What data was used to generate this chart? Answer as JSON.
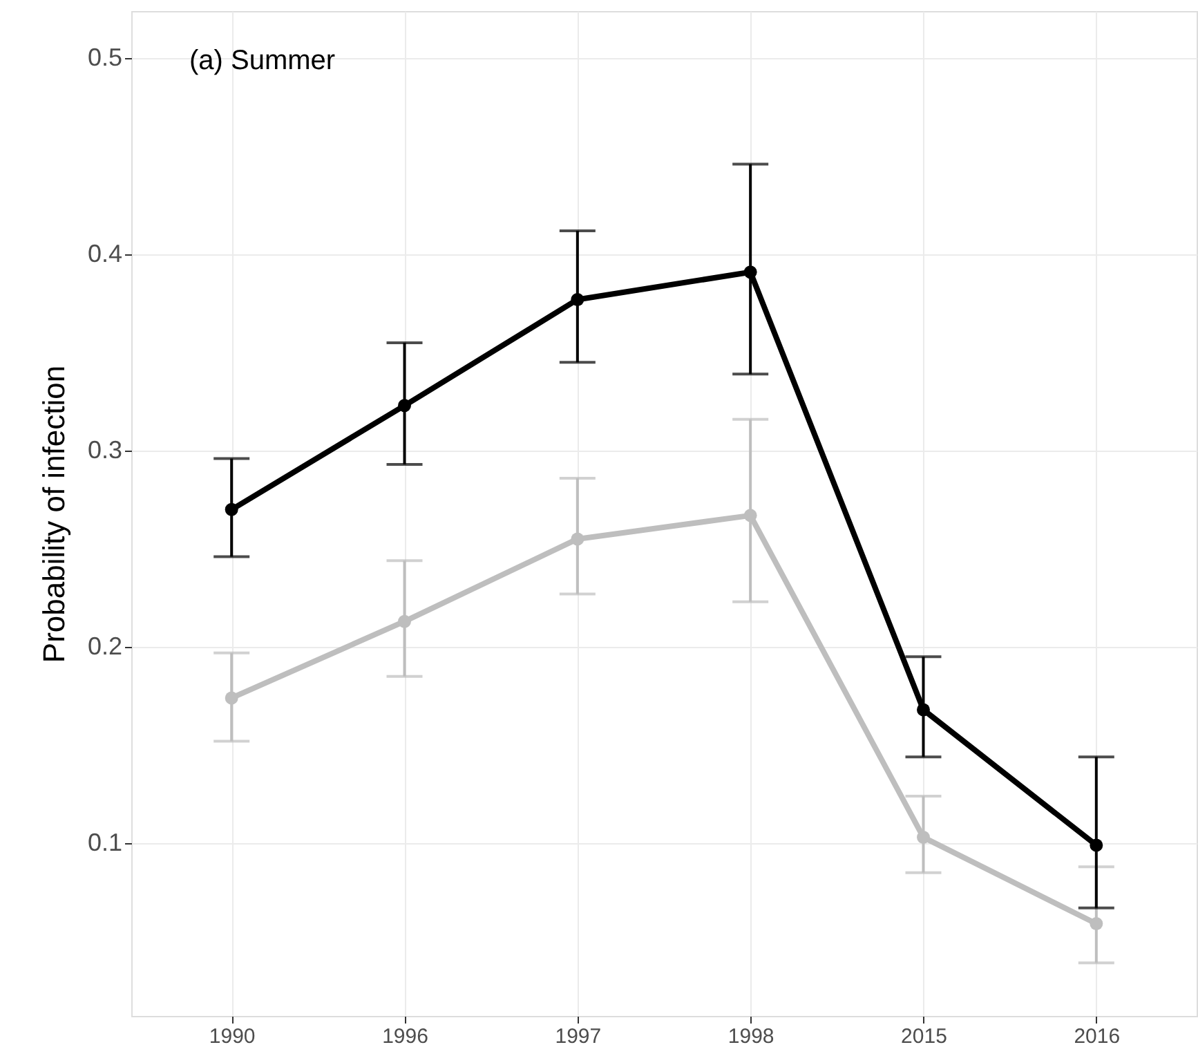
{
  "chart_data": {
    "type": "line",
    "ylabel": "Probability of infection",
    "annotations": [
      "(a) Summer"
    ],
    "categories": [
      "1990",
      "1996",
      "1997",
      "1998",
      "2015",
      "2016"
    ],
    "series": [
      {
        "color": "#bebebe",
        "values": [
          0.174,
          0.213,
          0.255,
          0.267,
          0.103,
          0.059
        ],
        "errors": [
          [
            0.152,
            0.197
          ],
          [
            0.185,
            0.244
          ],
          [
            0.227,
            0.286
          ],
          [
            0.223,
            0.316
          ],
          [
            0.085,
            0.124
          ],
          [
            0.039,
            0.088
          ]
        ]
      },
      {
        "color": "#000000",
        "values": [
          0.27,
          0.323,
          0.377,
          0.391,
          0.168,
          0.099
        ],
        "errors": [
          [
            0.246,
            0.296
          ],
          [
            0.293,
            0.355
          ],
          [
            0.345,
            0.412
          ],
          [
            0.339,
            0.446
          ],
          [
            0.144,
            0.195
          ],
          [
            0.067,
            0.144
          ]
        ]
      }
    ],
    "ylim": [
      0.012,
      0.524
    ],
    "yticks": [
      0.1,
      0.2,
      0.3,
      0.4,
      0.5
    ],
    "grid": true,
    "marker": "circle"
  }
}
